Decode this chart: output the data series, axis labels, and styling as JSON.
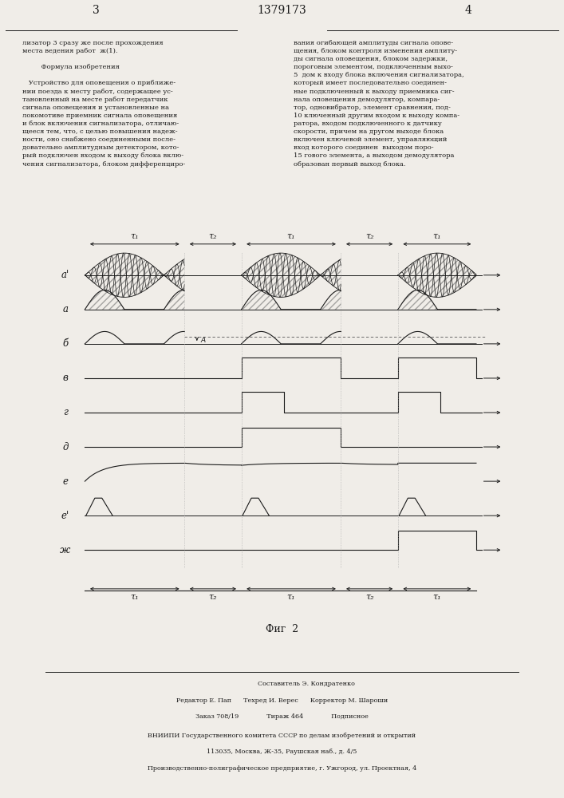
{
  "title_page": "1379173",
  "page_left": "3",
  "page_right": "4",
  "fig_label": "Фиг  2",
  "row_labels": [
    "a'",
    "a",
    "б",
    "в",
    "г",
    "д",
    "е",
    "е'",
    "ж"
  ],
  "tau_labels": [
    "τ₁",
    "τ₂",
    "τ₁",
    "τ₂",
    "τ₁"
  ],
  "tau_bounds": [
    0.0,
    0.28,
    0.44,
    0.72,
    0.88,
    1.1
  ],
  "bg_color": "#f0ede8",
  "line_color": "#1a1a1a"
}
